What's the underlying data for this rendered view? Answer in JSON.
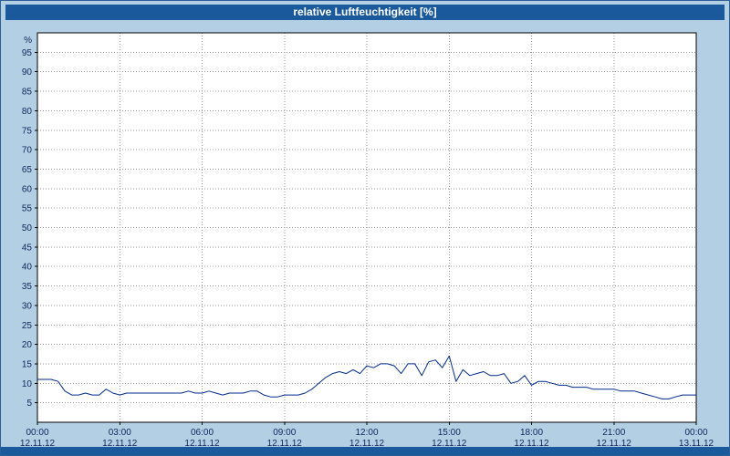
{
  "title": "relative Luftfeuchtigkeit [%]",
  "colors": {
    "titlebar": "#1a5a9c",
    "window_background": "#b3cfe4",
    "plot_background": "#ffffff",
    "line": "#002a8f",
    "grid": "#999999",
    "axis": "#000000",
    "label_text": "#10265c"
  },
  "chart_data": {
    "type": "line",
    "title": "relative Luftfeuchtigkeit [%]",
    "xlabel": "",
    "ylabel": "%",
    "ylim": [
      0,
      100
    ],
    "xlim_hours": [
      0,
      24
    ],
    "grid": true,
    "legend": "none",
    "y_ticks": [
      5,
      10,
      15,
      20,
      25,
      30,
      35,
      40,
      45,
      50,
      55,
      60,
      65,
      70,
      75,
      80,
      85,
      90,
      95
    ],
    "x_ticks": [
      {
        "hour": 0,
        "time": "00:00",
        "date": "12.11.12"
      },
      {
        "hour": 3,
        "time": "03:00",
        "date": "12.11.12"
      },
      {
        "hour": 6,
        "time": "06:00",
        "date": "12.11.12"
      },
      {
        "hour": 9,
        "time": "09:00",
        "date": "12.11.12"
      },
      {
        "hour": 12,
        "time": "12:00",
        "date": "12.11.12"
      },
      {
        "hour": 15,
        "time": "15:00",
        "date": "12.11.12"
      },
      {
        "hour": 18,
        "time": "18:00",
        "date": "12.11.12"
      },
      {
        "hour": 21,
        "time": "21:00",
        "date": "12.11.12"
      },
      {
        "hour": 24,
        "time": "00:00",
        "date": "13.11.12"
      }
    ],
    "x_hours": [
      0.0,
      0.25,
      0.5,
      0.75,
      1.0,
      1.25,
      1.5,
      1.75,
      2.0,
      2.25,
      2.5,
      2.75,
      3.0,
      3.25,
      3.5,
      3.75,
      4.0,
      4.25,
      4.5,
      4.75,
      5.0,
      5.25,
      5.5,
      5.75,
      6.0,
      6.25,
      6.5,
      6.75,
      7.0,
      7.25,
      7.5,
      7.75,
      8.0,
      8.25,
      8.5,
      8.75,
      9.0,
      9.25,
      9.5,
      9.75,
      10.0,
      10.25,
      10.5,
      10.75,
      11.0,
      11.25,
      11.5,
      11.75,
      12.0,
      12.25,
      12.5,
      12.75,
      13.0,
      13.25,
      13.5,
      13.75,
      14.0,
      14.25,
      14.5,
      14.75,
      15.0,
      15.25,
      15.5,
      15.75,
      16.0,
      16.25,
      16.5,
      16.75,
      17.0,
      17.25,
      17.5,
      17.75,
      18.0,
      18.25,
      18.5,
      18.75,
      19.0,
      19.25,
      19.5,
      19.75,
      20.0,
      20.25,
      20.5,
      20.75,
      21.0,
      21.25,
      21.5,
      21.75,
      22.0,
      22.25,
      22.5,
      22.75,
      23.0,
      23.25,
      23.5,
      23.75,
      24.0
    ],
    "values": [
      11,
      11,
      11,
      10.5,
      8,
      7,
      7,
      7.5,
      7,
      7,
      8.5,
      7.5,
      7,
      7.5,
      7.5,
      7.5,
      7.5,
      7.5,
      7.5,
      7.5,
      7.5,
      7.5,
      8,
      7.5,
      7.5,
      8,
      7.5,
      7,
      7.5,
      7.5,
      7.5,
      8,
      8,
      7,
      6.5,
      6.5,
      7,
      7,
      7,
      7.5,
      8.5,
      10,
      11.5,
      12.5,
      13,
      12.5,
      13.5,
      12.5,
      14.5,
      14,
      15,
      15,
      14.5,
      12.5,
      15,
      15,
      12,
      15.5,
      16,
      14,
      17,
      10.5,
      13.5,
      12,
      12.5,
      13,
      12,
      12,
      12.5,
      10,
      10.5,
      12,
      9.5,
      10.5,
      10.5,
      10,
      9.5,
      9.5,
      9,
      9,
      9,
      8.5,
      8.5,
      8.5,
      8.5,
      8,
      8,
      8,
      7.5,
      7,
      6.5,
      6,
      6,
      6.5,
      7,
      7,
      7
    ]
  }
}
